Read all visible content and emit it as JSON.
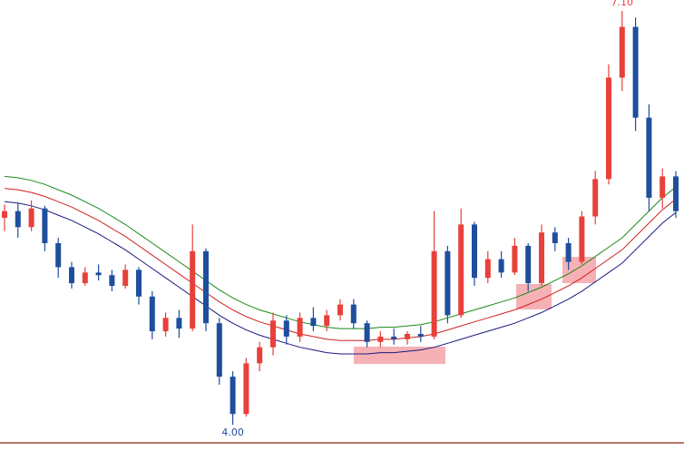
{
  "chart_data": {
    "type": "candlestick",
    "open": [
      5.55,
      5.6,
      5.48,
      5.62,
      5.36,
      5.18,
      5.06,
      5.14,
      5.12,
      5.04,
      5.16,
      4.96,
      4.7,
      4.8,
      4.72,
      5.3,
      4.76,
      4.36,
      4.08,
      4.46,
      4.58,
      4.78,
      4.66,
      4.8,
      4.74,
      4.82,
      4.9,
      4.76,
      4.62,
      4.66,
      4.64,
      4.68,
      4.66,
      5.3,
      4.82,
      5.5,
      5.1,
      5.24,
      5.14,
      5.34,
      5.06,
      5.44,
      5.36,
      5.22,
      5.56,
      5.84,
      6.6,
      6.98,
      6.3,
      5.7,
      5.86
    ],
    "high": [
      5.65,
      5.66,
      5.68,
      5.64,
      5.4,
      5.22,
      5.18,
      5.2,
      5.16,
      5.2,
      5.18,
      5.0,
      4.84,
      4.86,
      5.5,
      5.32,
      4.8,
      4.4,
      4.5,
      4.62,
      4.84,
      4.82,
      4.84,
      4.88,
      4.86,
      4.94,
      4.94,
      4.78,
      4.7,
      4.72,
      4.7,
      4.74,
      5.6,
      5.34,
      5.62,
      5.52,
      5.3,
      5.3,
      5.4,
      5.36,
      5.5,
      5.48,
      5.4,
      5.6,
      5.9,
      6.7,
      7.1,
      7.05,
      6.4,
      5.92,
      5.9
    ],
    "low": [
      5.45,
      5.4,
      5.45,
      5.3,
      5.1,
      5.02,
      5.04,
      5.08,
      5.0,
      5.02,
      4.9,
      4.64,
      4.66,
      4.65,
      4.7,
      4.7,
      4.3,
      4.0,
      4.06,
      4.4,
      4.52,
      4.6,
      4.62,
      4.7,
      4.7,
      4.78,
      4.72,
      4.58,
      4.58,
      4.6,
      4.6,
      4.62,
      4.64,
      4.76,
      4.8,
      5.04,
      5.06,
      5.1,
      5.12,
      5.0,
      5.04,
      5.3,
      5.16,
      5.2,
      5.5,
      5.8,
      6.5,
      6.2,
      5.6,
      5.62,
      5.55
    ],
    "close": [
      5.6,
      5.48,
      5.62,
      5.36,
      5.18,
      5.06,
      5.14,
      5.12,
      5.04,
      5.16,
      4.96,
      4.7,
      4.8,
      4.72,
      5.3,
      4.76,
      4.36,
      4.08,
      4.46,
      4.58,
      4.78,
      4.66,
      4.8,
      4.74,
      4.82,
      4.9,
      4.76,
      4.62,
      4.66,
      4.64,
      4.68,
      4.66,
      5.3,
      4.82,
      5.5,
      5.1,
      5.24,
      5.14,
      5.34,
      5.06,
      5.44,
      5.36,
      5.22,
      5.56,
      5.84,
      6.6,
      6.98,
      6.3,
      5.7,
      5.86,
      5.6
    ],
    "up_color": "#e8403a",
    "down_color": "#1f4e9c",
    "series": [
      {
        "color": "#1a8a1a",
        "values": [
          5.86,
          5.85,
          5.83,
          5.8,
          5.76,
          5.72,
          5.67,
          5.62,
          5.56,
          5.5,
          5.43,
          5.36,
          5.29,
          5.22,
          5.15,
          5.08,
          5.01,
          4.95,
          4.9,
          4.86,
          4.83,
          4.8,
          4.77,
          4.75,
          4.73,
          4.72,
          4.72,
          4.72,
          4.73,
          4.73,
          4.74,
          4.75,
          4.77,
          4.8,
          4.83,
          4.86,
          4.89,
          4.92,
          4.95,
          4.99,
          5.03,
          5.08,
          5.13,
          5.19,
          5.26,
          5.33,
          5.4,
          5.5,
          5.6,
          5.7,
          5.78
        ]
      },
      {
        "color": "#d02020",
        "values": [
          5.77,
          5.76,
          5.74,
          5.71,
          5.67,
          5.63,
          5.58,
          5.53,
          5.47,
          5.41,
          5.34,
          5.27,
          5.2,
          5.13,
          5.06,
          4.99,
          4.92,
          4.86,
          4.81,
          4.77,
          4.74,
          4.71,
          4.68,
          4.66,
          4.64,
          4.63,
          4.63,
          4.63,
          4.64,
          4.64,
          4.65,
          4.66,
          4.68,
          4.71,
          4.74,
          4.77,
          4.8,
          4.83,
          4.86,
          4.9,
          4.94,
          4.99,
          5.04,
          5.1,
          5.17,
          5.24,
          5.31,
          5.41,
          5.51,
          5.61,
          5.69
        ]
      },
      {
        "color": "#1a1a80",
        "values": [
          5.67,
          5.66,
          5.64,
          5.61,
          5.57,
          5.53,
          5.48,
          5.43,
          5.37,
          5.31,
          5.24,
          5.17,
          5.1,
          5.03,
          4.96,
          4.89,
          4.82,
          4.76,
          4.71,
          4.67,
          4.64,
          4.61,
          4.58,
          4.56,
          4.54,
          4.53,
          4.53,
          4.53,
          4.54,
          4.54,
          4.55,
          4.56,
          4.58,
          4.61,
          4.64,
          4.67,
          4.7,
          4.73,
          4.76,
          4.8,
          4.84,
          4.89,
          4.94,
          5.0,
          5.07,
          5.14,
          5.21,
          5.31,
          5.41,
          5.51,
          5.59
        ]
      }
    ],
    "annotations": [
      {
        "label": "7.10",
        "value": 7.1,
        "color": "#e8403a"
      },
      {
        "label": "4.00",
        "value": 4.0,
        "color": "#1f4e9c"
      }
    ]
  }
}
